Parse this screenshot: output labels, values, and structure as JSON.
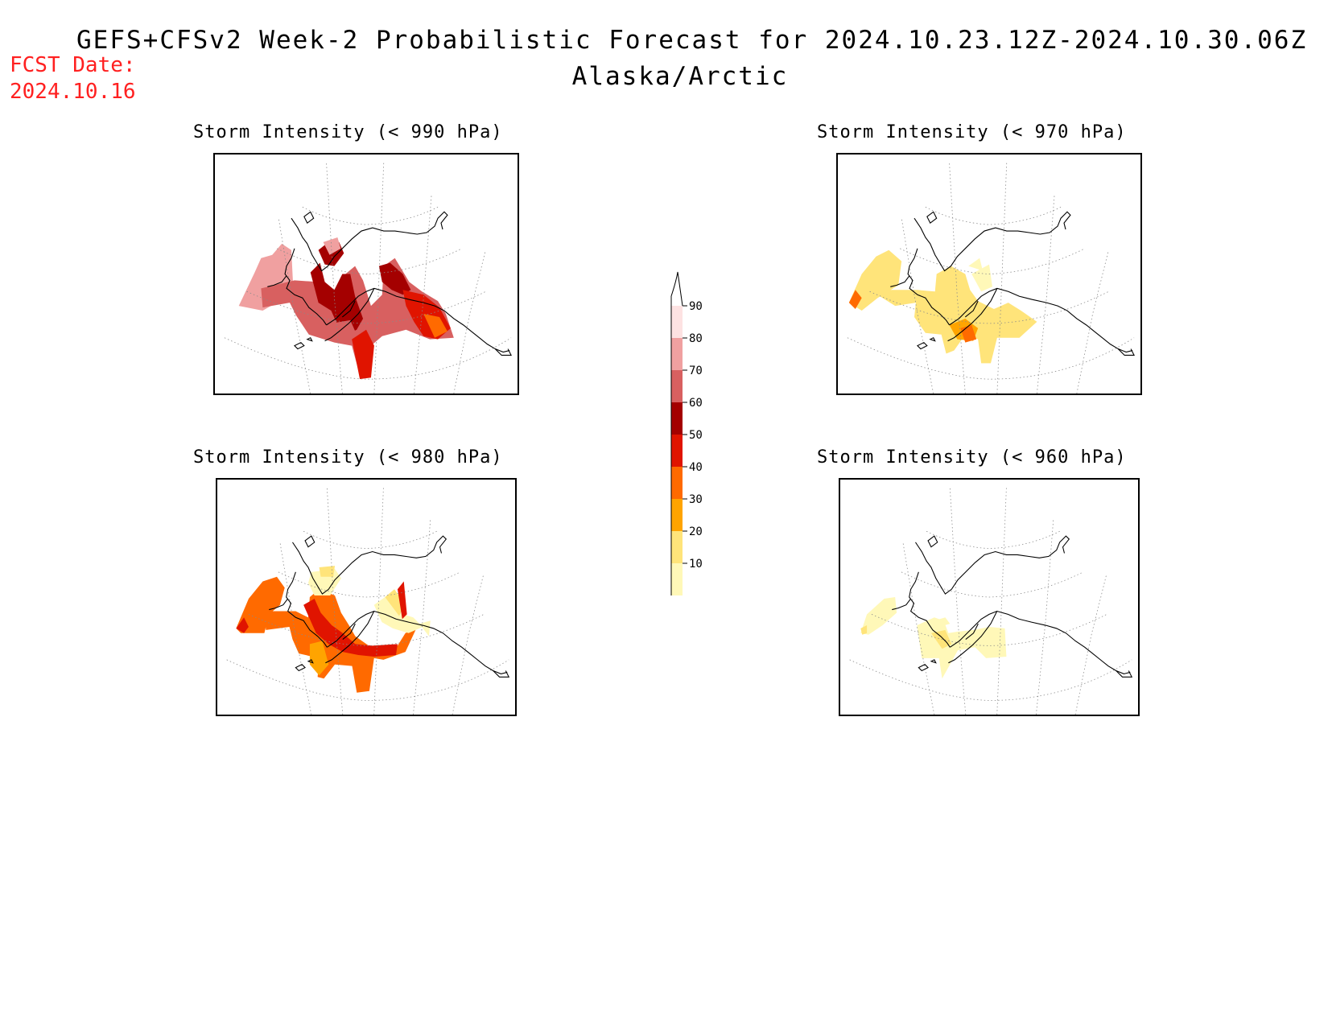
{
  "header": {
    "title": "GEFS+CFSv2 Week-2 Probabilistic Forecast for 2024.10.23.12Z-2024.10.30.06Z",
    "subtitle": "Alaska/Arctic",
    "fcst_label": "FCST Date:",
    "fcst_date": "2024.10.16"
  },
  "panels": [
    {
      "title": "Storm Intensity (< 990 hPa)",
      "level": "990"
    },
    {
      "title": "Storm Intensity (< 970 hPa)",
      "level": "970"
    },
    {
      "title": "Storm Intensity (< 980 hPa)",
      "level": "980"
    },
    {
      "title": "Storm Intensity (< 960 hPa)",
      "level": "960"
    }
  ],
  "colorbar": {
    "ticks": [
      "10",
      "20",
      "30",
      "40",
      "50",
      "60",
      "70",
      "80",
      "90"
    ],
    "bins": [
      {
        "range": "10-20",
        "color": "#fff8b8"
      },
      {
        "range": "20-30",
        "color": "#ffe47a"
      },
      {
        "range": "30-40",
        "color": "#ffa400"
      },
      {
        "range": "40-50",
        "color": "#ff6a00"
      },
      {
        "range": "50-60",
        "color": "#e01400"
      },
      {
        "range": "60-70",
        "color": "#a40000"
      },
      {
        "range": "70-80",
        "color": "#d86060"
      },
      {
        "range": "80-90",
        "color": "#f0a0a0"
      },
      {
        "range": "90-100",
        "color": "#fde2e2"
      }
    ]
  }
}
